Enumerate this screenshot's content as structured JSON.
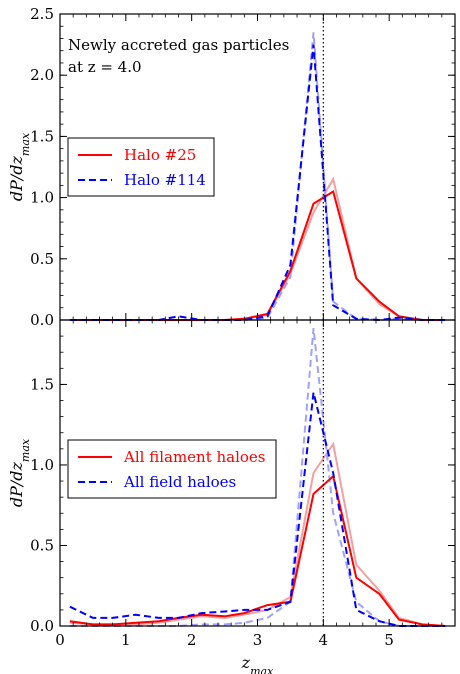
{
  "chart_data": [
    {
      "type": "line",
      "panel": "top",
      "annotation_lines": [
        "Newly accreted gas particles",
        "at z = 4.0"
      ],
      "ylabel": "dP/dz_max",
      "xlabel": "",
      "xlim": [
        0,
        6
      ],
      "ylim": [
        0,
        2.5
      ],
      "yticks": [
        "0.0",
        "0.5",
        "1.0",
        "1.5",
        "2.0",
        "2.5"
      ],
      "vline_x": 4.0,
      "legend_position": "middle-left",
      "series": [
        {
          "name": "Halo #25",
          "color": "#ff0000",
          "style": "solid",
          "legend": true,
          "x": [
            0.15,
            0.5,
            0.8,
            1.15,
            1.5,
            1.8,
            2.15,
            2.5,
            2.8,
            3.15,
            3.5,
            3.85,
            4.15,
            4.5,
            4.85,
            5.15,
            5.5,
            5.85
          ],
          "y": [
            0,
            0,
            0,
            0,
            0,
            0,
            0,
            0,
            0.01,
            0.05,
            0.4,
            0.95,
            1.05,
            0.34,
            0.15,
            0.03,
            0,
            0
          ]
        },
        {
          "name": "Halo #114",
          "color": "#0000ff",
          "style": "dashed",
          "legend": true,
          "x": [
            0.15,
            0.5,
            0.8,
            1.15,
            1.5,
            1.8,
            2.15,
            2.5,
            2.8,
            3.15,
            3.5,
            3.85,
            4.15,
            4.5,
            4.85,
            5.15,
            5.5,
            5.85
          ],
          "y": [
            0,
            0,
            0,
            0,
            0,
            0.03,
            0,
            0,
            0,
            0.03,
            0.45,
            2.25,
            0.12,
            0.01,
            0,
            0.02,
            0,
            0
          ]
        },
        {
          "name": "",
          "color": "#f5a0a0",
          "style": "solid",
          "legend": false,
          "x": [
            0.15,
            0.5,
            0.8,
            1.15,
            1.5,
            1.8,
            2.15,
            2.5,
            2.8,
            3.15,
            3.5,
            3.85,
            4.15,
            4.5,
            4.85,
            5.15,
            5.5,
            5.85
          ],
          "y": [
            0,
            0,
            0,
            0,
            0,
            0,
            0,
            0,
            0.01,
            0.04,
            0.38,
            0.88,
            1.15,
            0.34,
            0.13,
            0.03,
            0,
            0
          ]
        },
        {
          "name": "",
          "color": "#a0a0ff",
          "style": "dashed",
          "legend": false,
          "x": [
            0.15,
            0.5,
            0.8,
            1.15,
            1.5,
            1.8,
            2.15,
            2.5,
            2.8,
            3.15,
            3.5,
            3.85,
            4.15,
            4.5,
            4.85,
            5.15,
            5.5,
            5.85
          ],
          "y": [
            0,
            0,
            0,
            0,
            0,
            0,
            0,
            0,
            0,
            0.02,
            0.35,
            2.35,
            0.15,
            0.01,
            0,
            0.01,
            0,
            0
          ]
        }
      ]
    },
    {
      "type": "line",
      "panel": "bottom",
      "ylabel": "dP/dz_max",
      "xlabel": "z_max",
      "xlim": [
        0,
        6
      ],
      "ylim": [
        0,
        1.9
      ],
      "yticks": [
        "0.0",
        "0.5",
        "1.0",
        "1.5"
      ],
      "xticks": [
        "0",
        "1",
        "2",
        "3",
        "4",
        "5"
      ],
      "vline_x": 4.0,
      "legend_position": "middle-left",
      "series": [
        {
          "name": "All filament haloes",
          "color": "#ff0000",
          "style": "solid",
          "legend": true,
          "x": [
            0.15,
            0.5,
            0.8,
            1.15,
            1.5,
            1.8,
            2.15,
            2.5,
            2.8,
            3.15,
            3.5,
            3.85,
            4.15,
            4.5,
            4.85,
            5.15,
            5.5,
            5.85
          ],
          "y": [
            0.03,
            0.01,
            0.01,
            0.02,
            0.03,
            0.05,
            0.07,
            0.06,
            0.08,
            0.13,
            0.15,
            0.82,
            0.93,
            0.3,
            0.2,
            0.04,
            0.01,
            0
          ]
        },
        {
          "name": "All field haloes",
          "color": "#0000ff",
          "style": "dashed",
          "legend": true,
          "x": [
            0.15,
            0.5,
            0.8,
            1.15,
            1.5,
            1.8,
            2.15,
            2.5,
            2.8,
            3.15,
            3.5,
            3.85,
            4.15,
            4.5,
            4.85,
            5.15,
            5.5,
            5.85
          ],
          "y": [
            0.12,
            0.05,
            0.05,
            0.07,
            0.05,
            0.05,
            0.08,
            0.09,
            0.1,
            0.1,
            0.15,
            1.45,
            0.95,
            0.1,
            0.03,
            0,
            0,
            0
          ]
        },
        {
          "name": "",
          "color": "#f5a0a0",
          "style": "solid",
          "legend": false,
          "x": [
            0.15,
            0.5,
            0.8,
            1.15,
            1.5,
            1.8,
            2.15,
            2.5,
            2.8,
            3.15,
            3.5,
            3.85,
            4.15,
            4.5,
            4.85,
            5.15,
            5.5,
            5.85
          ],
          "y": [
            0.02,
            0.01,
            0.01,
            0.01,
            0.02,
            0.04,
            0.06,
            0.05,
            0.07,
            0.1,
            0.18,
            0.95,
            1.13,
            0.38,
            0.22,
            0.05,
            0.01,
            0
          ]
        },
        {
          "name": "",
          "color": "#a0a0ff",
          "style": "dashed",
          "legend": false,
          "x": [
            0.15,
            0.5,
            0.8,
            1.15,
            1.5,
            1.8,
            2.15,
            2.5,
            2.8,
            3.15,
            3.5,
            3.85,
            4.15,
            4.5,
            4.85,
            5.15,
            5.5,
            5.85
          ],
          "y": [
            0,
            0,
            0,
            0,
            0,
            0,
            0.01,
            0.01,
            0.02,
            0.05,
            0.15,
            1.85,
            0.7,
            0.15,
            0.03,
            0,
            0,
            0
          ]
        }
      ]
    }
  ]
}
